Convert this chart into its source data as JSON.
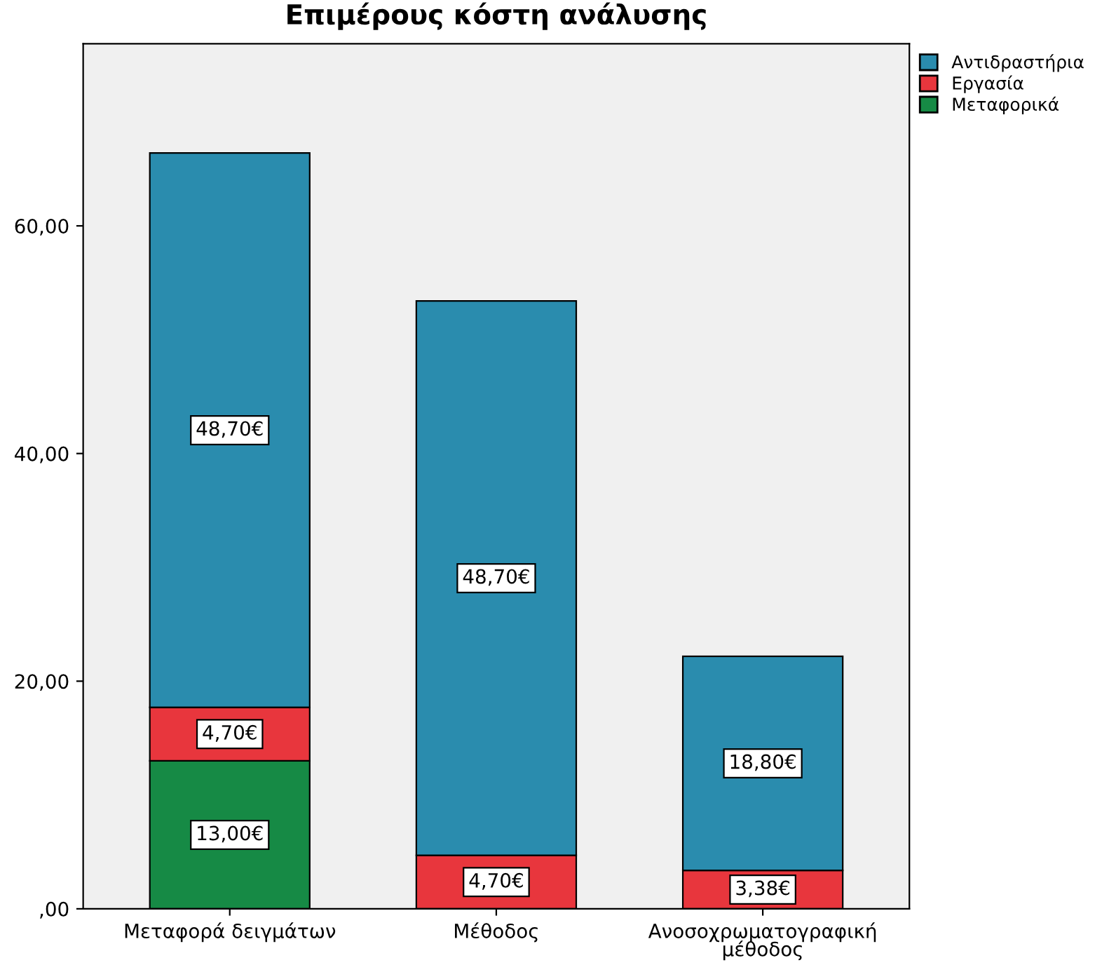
{
  "chart_data": {
    "type": "bar",
    "stacked": true,
    "title": "Επιμέρους κόστη ανάλυσης",
    "categories": [
      "Μεταφορά δειγμάτων",
      "Μέθοδος",
      "Ανοσοχρωματογραφική\nμέθοδος"
    ],
    "series": [
      {
        "name": "Μεταφορικά",
        "color": "#168a45",
        "values": [
          13.0,
          null,
          null
        ],
        "value_labels": [
          "13,00€",
          null,
          null
        ]
      },
      {
        "name": "Εργασία",
        "color": "#e8363d",
        "values": [
          4.7,
          4.7,
          3.38
        ],
        "value_labels": [
          "4,70€",
          "4,70€",
          "3,38€"
        ]
      },
      {
        "name": "Αντιδραστήρια",
        "color": "#2a8cae",
        "values": [
          48.7,
          48.7,
          18.8
        ],
        "value_labels": [
          "48,70€",
          "48,70€",
          "18,80€"
        ]
      }
    ],
    "ylim": [
      0,
      76
    ],
    "yticks": [
      {
        "value": 0,
        "label": ",00"
      },
      {
        "value": 20,
        "label": "20,00"
      },
      {
        "value": 40,
        "label": "40,00"
      },
      {
        "value": 60,
        "label": "60,00"
      }
    ],
    "grid": false,
    "legend": "top right"
  }
}
